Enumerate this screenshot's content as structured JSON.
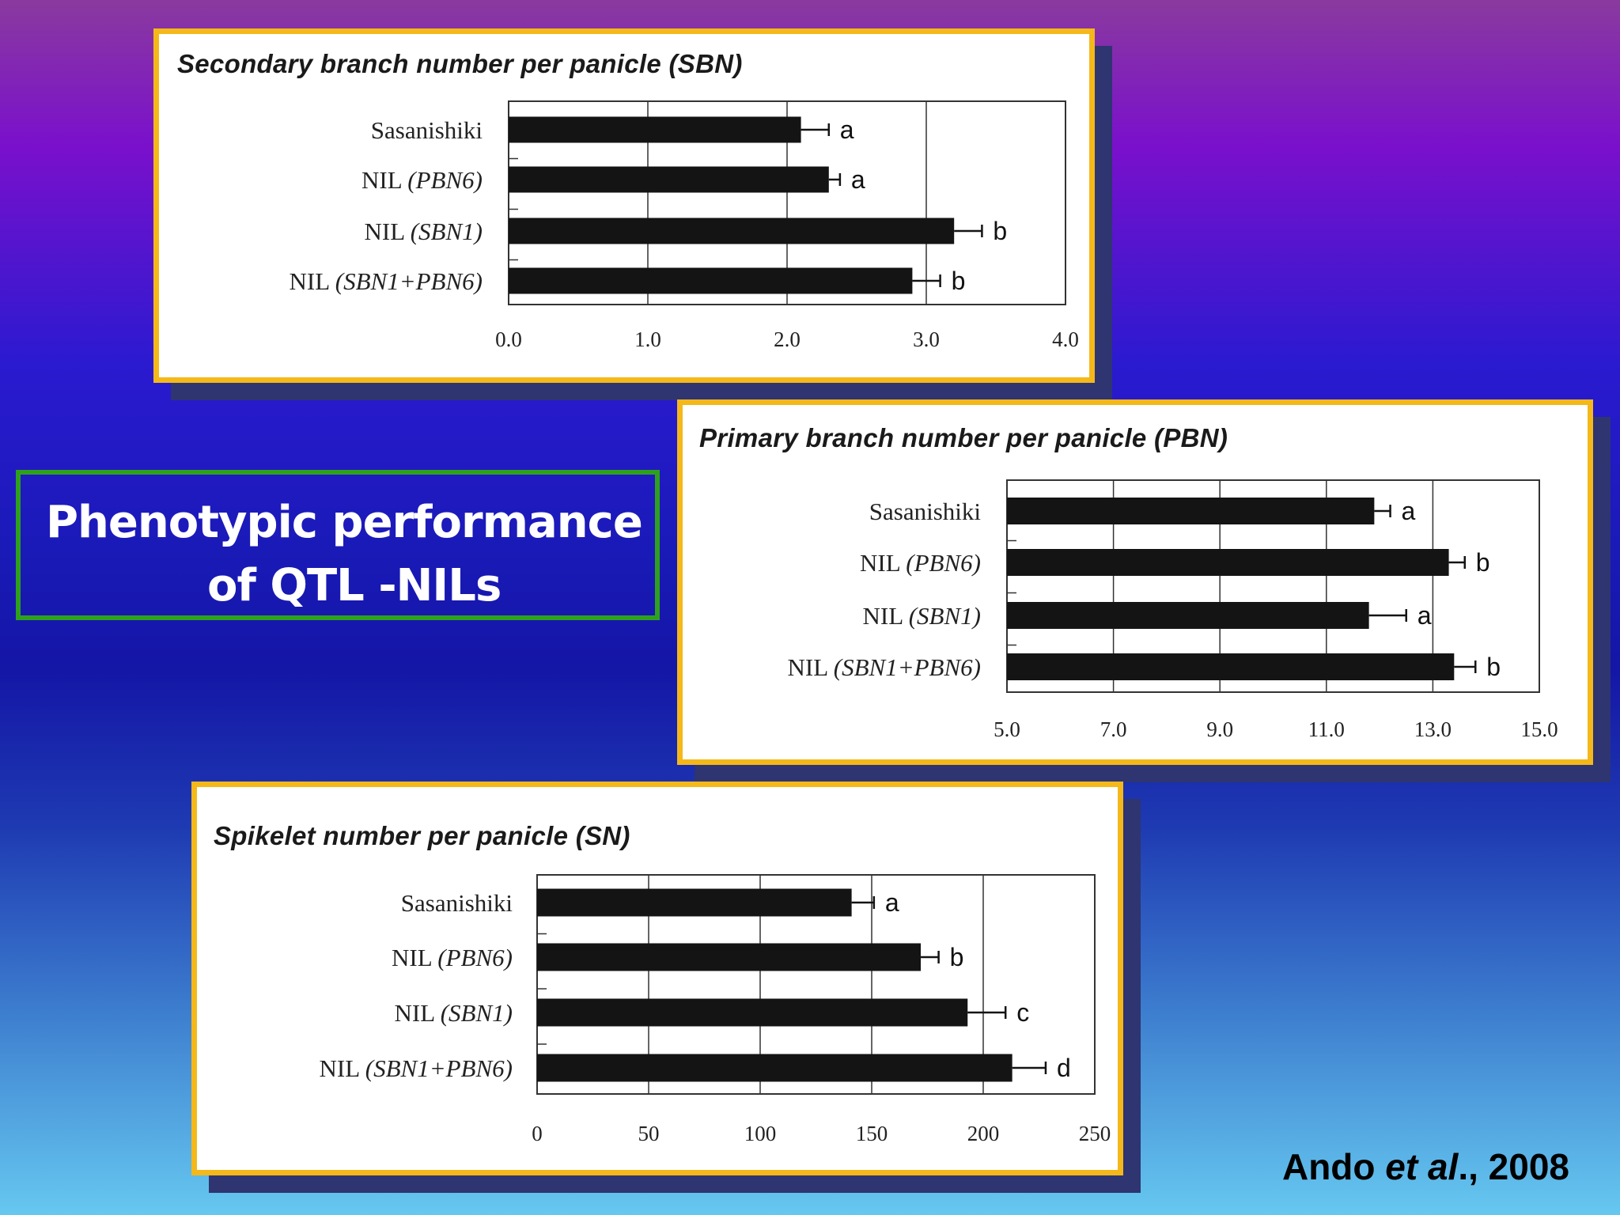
{
  "slide": {
    "title_line1": "Phenotypic performance",
    "title_line2": "of QTL -NILs",
    "citation_author": "Ando",
    "citation_etal": "et al",
    "citation_year": "., 2008",
    "accent_frame": "#f4b81a",
    "title_border": "#2ea01e"
  },
  "chart_data": [
    {
      "type": "bar",
      "orientation": "horizontal",
      "title": "Secondary branch number per panicle (SBN)",
      "categories": [
        "Sasanishiki",
        "NIL (PBN6)",
        "NIL (SBN1)",
        "NIL (SBN1+PBN6)"
      ],
      "values": [
        2.1,
        2.3,
        3.2,
        2.9
      ],
      "errors": [
        0.2,
        0.08,
        0.2,
        0.2
      ],
      "significance": [
        "a",
        "a",
        "b",
        "b"
      ],
      "xlim": [
        0,
        4
      ],
      "ticks": [
        0,
        1,
        2,
        3,
        4
      ],
      "tick_labels": [
        "0.0",
        "1.0",
        "2.0",
        "3.0",
        "4.0"
      ]
    },
    {
      "type": "bar",
      "orientation": "horizontal",
      "title": "Primary branch number per panicle (PBN)",
      "categories": [
        "Sasanishiki",
        "NIL (PBN6)",
        "NIL (SBN1)",
        "NIL (SBN1+PBN6)"
      ],
      "values": [
        11.9,
        13.3,
        11.8,
        13.4
      ],
      "errors": [
        0.3,
        0.3,
        0.7,
        0.4
      ],
      "significance": [
        "a",
        "b",
        "a",
        "b"
      ],
      "xlim": [
        5,
        15
      ],
      "ticks": [
        5,
        7,
        9,
        11,
        13,
        15
      ],
      "tick_labels": [
        "5.0",
        "7.0",
        "9.0",
        "11.0",
        "13.0",
        "15.0"
      ]
    },
    {
      "type": "bar",
      "orientation": "horizontal",
      "title": "Spikelet number per panicle (SN)",
      "categories": [
        "Sasanishiki",
        "NIL (PBN6)",
        "NIL (SBN1)",
        "NIL (SBN1+PBN6)"
      ],
      "values": [
        141,
        172,
        193,
        213
      ],
      "errors": [
        10,
        8,
        17,
        15
      ],
      "significance": [
        "a",
        "b",
        "c",
        "d"
      ],
      "xlim": [
        0,
        250
      ],
      "ticks": [
        0,
        50,
        100,
        150,
        200,
        250
      ],
      "tick_labels": [
        "0",
        "50",
        "100",
        "150",
        "200",
        "250"
      ]
    }
  ]
}
